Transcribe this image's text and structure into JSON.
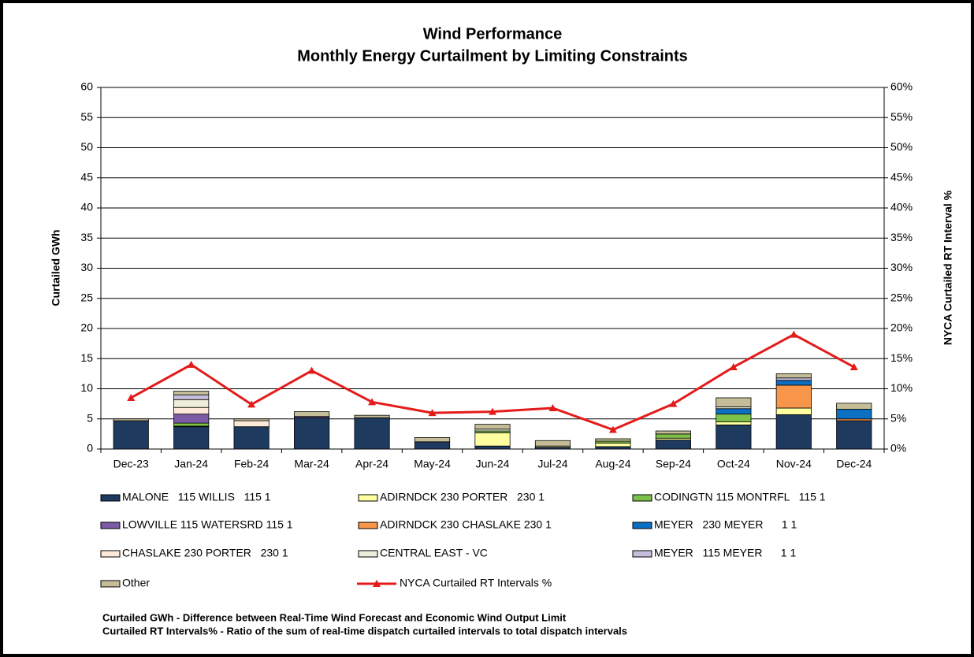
{
  "chart_data": {
    "type": "bar",
    "stacked": true,
    "title": "Wind Performance",
    "subtitle": "Monthly Energy Curtailment by Limiting Constraints",
    "ylabel": "Curtailed GWh",
    "y2label": "NYCA Curtailed RT Interval %",
    "categories": [
      "Dec-23",
      "Jan-24",
      "Feb-24",
      "Mar-24",
      "Apr-24",
      "May-24",
      "Jun-24",
      "Jul-24",
      "Aug-24",
      "Sep-24",
      "Oct-24",
      "Nov-24",
      "Dec-24"
    ],
    "series": [
      {
        "name": "MALONE   115 WILLIS   115 1",
        "color": "#1f3a5f",
        "values": [
          4.7,
          3.7,
          3.7,
          5.2,
          5.2,
          1.2,
          0.5,
          0.3,
          0.4,
          1.5,
          4.0,
          5.7,
          4.7
        ]
      },
      {
        "name": "ADIRNDCK 230 PORTER   230 1",
        "color": "#ffffa0",
        "values": [
          0,
          0.1,
          0,
          0,
          0,
          0,
          2.2,
          0.2,
          0.6,
          0.3,
          0.5,
          1.1,
          0
        ]
      },
      {
        "name": "CODINGTN 115 MONTRFL   115 1",
        "color": "#7dc14a",
        "values": [
          0,
          0.5,
          0,
          0,
          0,
          0,
          0.3,
          0,
          0.3,
          0.7,
          1.3,
          0,
          0
        ]
      },
      {
        "name": "LOWVILLE 115 WATERSRD 115 1",
        "color": "#7b5aa6",
        "values": [
          0,
          1.5,
          0,
          0.2,
          0,
          0,
          0,
          0,
          0,
          0,
          0,
          0,
          0
        ]
      },
      {
        "name": "ADIRNDCK 230 CHASLAKE 230 1",
        "color": "#f7964a",
        "values": [
          0,
          0,
          0,
          0,
          0,
          0,
          0,
          0,
          0,
          0,
          0,
          3.8,
          0.3
        ]
      },
      {
        "name": "MEYER   230 MEYER      1 1",
        "color": "#0b6fc4",
        "values": [
          0,
          0,
          0,
          0,
          0,
          0,
          0,
          0,
          0,
          0,
          0.9,
          0.8,
          1.6
        ]
      },
      {
        "name": "CHASLAKE 230 PORTER   230 1",
        "color": "#fde9d9",
        "values": [
          0,
          1.1,
          1.0,
          0,
          0,
          0,
          0,
          0,
          0,
          0,
          0,
          0,
          0
        ]
      },
      {
        "name": "CENTRAL EAST - VC",
        "color": "#eeeedd",
        "values": [
          0,
          1.3,
          0,
          0,
          0,
          0,
          0.3,
          0,
          0,
          0,
          0.3,
          0,
          0
        ]
      },
      {
        "name": "MEYER   115 MEYER      1 1",
        "color": "#c7bedb",
        "values": [
          0,
          0.8,
          0,
          0,
          0,
          0,
          0,
          0,
          0,
          0,
          0,
          0.4,
          0
        ]
      },
      {
        "name": "Other",
        "color": "#c4bd97",
        "values": [
          0.3,
          0.6,
          0.3,
          0.8,
          0.4,
          0.7,
          0.8,
          0.9,
          0.4,
          0.5,
          1.5,
          0.7,
          1.0
        ]
      },
      {
        "name": "NYCA Curtailed RT Intervals %",
        "color": "#e41b1b",
        "type": "line",
        "axis": "y2",
        "values": [
          8.5,
          14,
          7.4,
          13,
          7.8,
          6,
          6.2,
          6.8,
          3.2,
          7.5,
          13.6,
          19,
          13.6
        ]
      }
    ],
    "ylim": [
      0,
      60
    ],
    "yticks": [
      0,
      5,
      10,
      15,
      20,
      25,
      30,
      35,
      40,
      45,
      50,
      55,
      60
    ],
    "y2lim": [
      0,
      60
    ],
    "y2ticks": [
      {
        "value": 0,
        "label": "0%"
      },
      {
        "value": 5,
        "label": "5%"
      },
      {
        "value": 10,
        "label": "10%"
      },
      {
        "value": 15,
        "label": "15%"
      },
      {
        "value": 20,
        "label": "20%"
      },
      {
        "value": 25,
        "label": "25%"
      },
      {
        "value": 30,
        "label": "30%"
      },
      {
        "value": 35,
        "label": "35%"
      },
      {
        "value": 40,
        "label": "40%"
      },
      {
        "value": 45,
        "label": "45%"
      },
      {
        "value": 50,
        "label": "50%"
      },
      {
        "value": 55,
        "label": "55%"
      },
      {
        "value": 60,
        "label": "60%"
      }
    ],
    "grid": true,
    "notes": [
      "Curtailed GWh - Difference between Real-Time Wind Forecast and Economic Wind Output Limit",
      "Curtailed RT Intervals% - Ratio of the sum of real-time dispatch curtailed intervals to total dispatch intervals"
    ]
  }
}
